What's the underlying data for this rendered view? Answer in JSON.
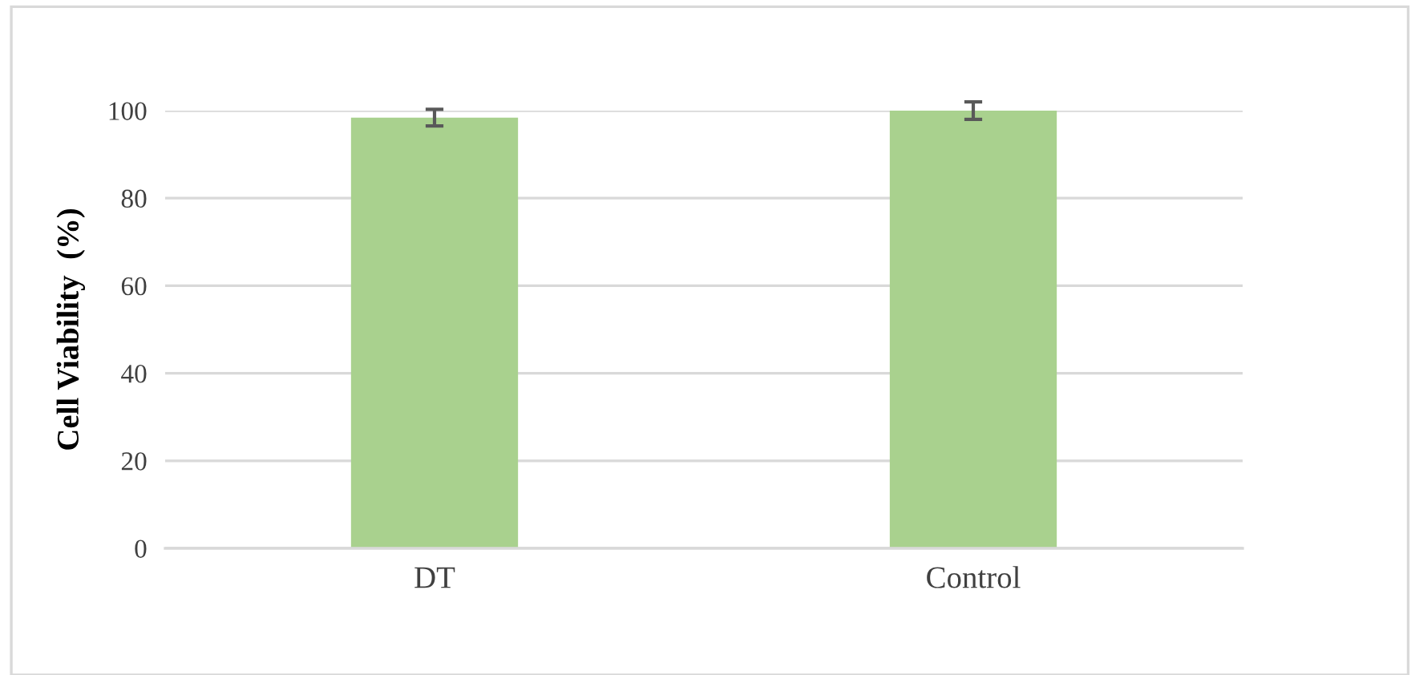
{
  "chart_data": {
    "type": "bar",
    "ylabel": "Cell Viability  (%)",
    "categories": [
      "DT",
      "Control"
    ],
    "values": [
      98.4,
      100
    ],
    "errors": [
      1.9,
      2.0
    ],
    "color": "#a9d18e",
    "ylim": [
      0,
      100
    ],
    "yticks": [
      0,
      20,
      40,
      60,
      80,
      100
    ],
    "grid": "y"
  }
}
